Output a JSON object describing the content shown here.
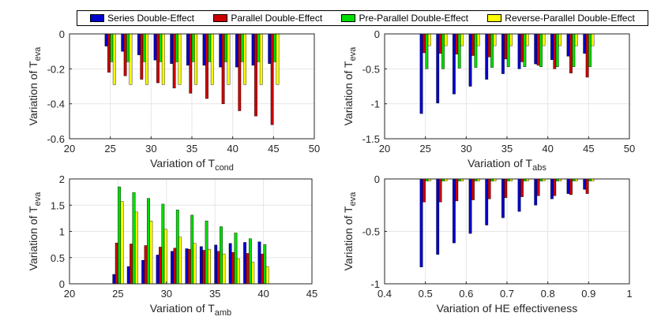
{
  "legend": {
    "items": [
      {
        "label": "Series Double-Effect",
        "color": "#0000CC"
      },
      {
        "label": "Parallel Double-Effect",
        "color": "#CC0000"
      },
      {
        "label": "Pre-Parallel Double-Effect",
        "color": "#00DD00"
      },
      {
        "label": "Reverse-Parallel Double-Effect",
        "color": "#FFFF00"
      }
    ]
  },
  "chart_data": [
    {
      "type": "bar",
      "xlabel": {
        "main": "Variation of T",
        "sub": "cond"
      },
      "ylabel": {
        "main": "Variation of T",
        "sub": "eva"
      },
      "xlim": [
        20,
        50
      ],
      "ylim": [
        -0.6,
        0
      ],
      "xticks": [
        "20",
        "25",
        "30",
        "35",
        "40",
        "45",
        "50"
      ],
      "yticks": [
        "-0.6",
        "-0.4",
        "-0.2",
        "0"
      ],
      "grid": true,
      "categories": [
        25,
        27,
        29,
        31,
        33,
        35,
        37,
        39,
        41,
        43,
        45
      ],
      "series": [
        {
          "name": "Series Double-Effect",
          "values": [
            -0.07,
            -0.1,
            -0.12,
            -0.15,
            -0.17,
            -0.18,
            -0.18,
            -0.19,
            -0.19,
            -0.18,
            -0.17
          ]
        },
        {
          "name": "Parallel Double-Effect",
          "values": [
            -0.22,
            -0.24,
            -0.26,
            -0.28,
            -0.31,
            -0.34,
            -0.37,
            -0.4,
            -0.44,
            -0.47,
            -0.52
          ]
        },
        {
          "name": "Pre-Parallel Double-Effect",
          "values": [
            -0.16,
            -0.16,
            -0.16,
            -0.16,
            -0.16,
            -0.16,
            -0.16,
            -0.16,
            -0.16,
            -0.16,
            -0.16
          ]
        },
        {
          "name": "Reverse-Parallel Double-Effect",
          "values": [
            -0.29,
            -0.29,
            -0.29,
            -0.29,
            -0.29,
            -0.29,
            -0.29,
            -0.29,
            -0.29,
            -0.29,
            -0.29
          ]
        }
      ]
    },
    {
      "type": "bar",
      "xlabel": {
        "main": "Variation of T",
        "sub": "abs"
      },
      "ylabel": {
        "main": "Variation of T",
        "sub": "eva"
      },
      "xlim": [
        20,
        50
      ],
      "ylim": [
        -1.5,
        0
      ],
      "xticks": [
        "20",
        "25",
        "30",
        "35",
        "40",
        "45",
        "50"
      ],
      "yticks": [
        "-1.5",
        "-1",
        "-0.5",
        "0"
      ],
      "grid": true,
      "categories": [
        25,
        27,
        29,
        31,
        33,
        35,
        37,
        39,
        41,
        43,
        45
      ],
      "series": [
        {
          "name": "Series Double-Effect",
          "values": [
            -1.14,
            -0.99,
            -0.86,
            -0.75,
            -0.65,
            -0.57,
            -0.5,
            -0.43,
            -0.37,
            -0.32,
            -0.28
          ]
        },
        {
          "name": "Parallel Double-Effect",
          "values": [
            -0.27,
            -0.28,
            -0.29,
            -0.31,
            -0.33,
            -0.36,
            -0.4,
            -0.45,
            -0.5,
            -0.56,
            -0.62
          ]
        },
        {
          "name": "Pre-Parallel Double-Effect",
          "values": [
            -0.5,
            -0.5,
            -0.49,
            -0.48,
            -0.48,
            -0.47,
            -0.47,
            -0.47,
            -0.47,
            -0.47,
            -0.47
          ]
        },
        {
          "name": "Reverse-Parallel Double-Effect",
          "values": [
            -0.17,
            -0.17,
            -0.17,
            -0.17,
            -0.17,
            -0.17,
            -0.17,
            -0.17,
            -0.17,
            -0.17,
            -0.17
          ]
        }
      ]
    },
    {
      "type": "bar",
      "xlabel": {
        "main": "Variation of T",
        "sub": "amb"
      },
      "ylabel": {
        "main": "Variation of T",
        "sub": "eva"
      },
      "xlim": [
        20,
        45
      ],
      "ylim": [
        0,
        2
      ],
      "xticks": [
        "20",
        "25",
        "30",
        "35",
        "40",
        "45"
      ],
      "yticks": [
        "0",
        "0.5",
        "1",
        "1.5",
        "2"
      ],
      "grid": true,
      "categories": [
        25,
        26.5,
        28,
        29.5,
        31,
        32.5,
        34,
        35.5,
        37,
        38.5,
        40
      ],
      "series": [
        {
          "name": "Series Double-Effect",
          "values": [
            0.18,
            0.33,
            0.45,
            0.55,
            0.62,
            0.67,
            0.71,
            0.74,
            0.77,
            0.79,
            0.8
          ]
        },
        {
          "name": "Parallel Double-Effect",
          "values": [
            0.78,
            0.76,
            0.73,
            0.7,
            0.68,
            0.66,
            0.64,
            0.62,
            0.6,
            0.58,
            0.57
          ]
        },
        {
          "name": "Pre-Parallel Double-Effect",
          "values": [
            1.85,
            1.74,
            1.63,
            1.52,
            1.41,
            1.31,
            1.2,
            1.09,
            0.97,
            0.86,
            0.75
          ]
        },
        {
          "name": "Reverse-Parallel Double-Effect",
          "values": [
            1.57,
            1.37,
            1.2,
            1.04,
            0.89,
            0.77,
            0.66,
            0.57,
            0.48,
            0.41,
            0.33
          ]
        }
      ]
    },
    {
      "type": "bar",
      "xlabel": {
        "main": "Variation of HE effectiveness",
        "sub": ""
      },
      "ylabel": {
        "main": "Variation of T",
        "sub": "eva"
      },
      "xlim": [
        0.4,
        1
      ],
      "ylim": [
        -1,
        0
      ],
      "xticks": [
        "0.4",
        "0.5",
        "0.6",
        "0.7",
        "0.8",
        "0.9",
        "1"
      ],
      "yticks": [
        "-1",
        "-0.5",
        "0"
      ],
      "grid": true,
      "categories": [
        0.5,
        0.54,
        0.58,
        0.62,
        0.66,
        0.7,
        0.74,
        0.78,
        0.82,
        0.86,
        0.9
      ],
      "series": [
        {
          "name": "Series Double-Effect",
          "values": [
            -0.84,
            -0.72,
            -0.61,
            -0.52,
            -0.44,
            -0.37,
            -0.31,
            -0.25,
            -0.19,
            -0.14,
            -0.1
          ]
        },
        {
          "name": "Parallel Double-Effect",
          "values": [
            -0.22,
            -0.22,
            -0.21,
            -0.2,
            -0.19,
            -0.18,
            -0.17,
            -0.16,
            -0.16,
            -0.15,
            -0.14
          ]
        },
        {
          "name": "Pre-Parallel Double-Effect",
          "values": [
            -0.02,
            -0.02,
            -0.02,
            -0.02,
            -0.02,
            -0.02,
            -0.02,
            -0.02,
            -0.02,
            -0.02,
            -0.02
          ]
        },
        {
          "name": "Reverse-Parallel Double-Effect",
          "values": [
            -0.02,
            -0.02,
            -0.02,
            -0.02,
            -0.02,
            -0.02,
            -0.02,
            -0.02,
            -0.02,
            -0.02,
            -0.02
          ]
        }
      ]
    }
  ]
}
